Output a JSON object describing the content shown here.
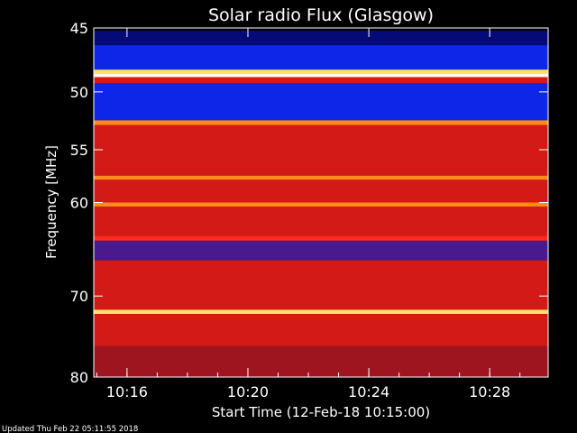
{
  "chart_data": {
    "type": "heatmap",
    "title": "Solar radio Flux (Glasgow)",
    "xlabel": "Start Time (12-Feb-18 10:15:00)",
    "ylabel": "Frequency [MHz]",
    "footer": "Updated Thu Feb 22 05:11:55 2018",
    "xlim": [
      "10:14:54",
      "10:29:56"
    ],
    "ylim": [
      45,
      80
    ],
    "y_scale": "log",
    "grid": false,
    "x_ticks": [
      "10:16",
      "10:20",
      "10:24",
      "10:28"
    ],
    "y_ticks": [
      45,
      50,
      55,
      60,
      70,
      80
    ],
    "colormap": "red-temperature (black-blue-red-yellow-white)",
    "bands": [
      {
        "from_mhz": 45.2,
        "to_mhz": 46.3,
        "level": "dark-blue"
      },
      {
        "from_mhz": 46.3,
        "to_mhz": 48.2,
        "level": "blue"
      },
      {
        "from_mhz": 48.2,
        "to_mhz": 48.5,
        "level": "yellow"
      },
      {
        "from_mhz": 48.5,
        "to_mhz": 48.8,
        "level": "white"
      },
      {
        "from_mhz": 48.8,
        "to_mhz": 49.3,
        "level": "red-dots"
      },
      {
        "from_mhz": 49.3,
        "to_mhz": 52.4,
        "level": "blue"
      },
      {
        "from_mhz": 52.4,
        "to_mhz": 52.8,
        "level": "orange"
      },
      {
        "from_mhz": 52.8,
        "to_mhz": 57.4,
        "level": "red"
      },
      {
        "from_mhz": 57.4,
        "to_mhz": 57.8,
        "level": "orange"
      },
      {
        "from_mhz": 57.8,
        "to_mhz": 60.0,
        "level": "red"
      },
      {
        "from_mhz": 60.0,
        "to_mhz": 60.4,
        "level": "orange"
      },
      {
        "from_mhz": 60.4,
        "to_mhz": 63.4,
        "level": "red"
      },
      {
        "from_mhz": 63.4,
        "to_mhz": 63.9,
        "level": "bright-red"
      },
      {
        "from_mhz": 63.9,
        "to_mhz": 66.0,
        "level": "purple"
      },
      {
        "from_mhz": 66.0,
        "to_mhz": 71.6,
        "level": "red"
      },
      {
        "from_mhz": 71.6,
        "to_mhz": 72.1,
        "level": "yellow"
      },
      {
        "from_mhz": 72.1,
        "to_mhz": 76.0,
        "level": "red"
      },
      {
        "from_mhz": 76.0,
        "to_mhz": 80.0,
        "level": "dark-red"
      }
    ],
    "colors": {
      "background": "#000000",
      "dark-blue": "#050a78",
      "blue": "#0d26e8",
      "purple": "#4a1a8c",
      "red": "#d41a16",
      "bright-red": "#ff2a1a",
      "dark-red": "#9e1520",
      "orange": "#ff8c1a",
      "yellow": "#ffe066",
      "white": "#fffbe8",
      "red-dots": "#d81818",
      "text": "#ffffff"
    }
  }
}
